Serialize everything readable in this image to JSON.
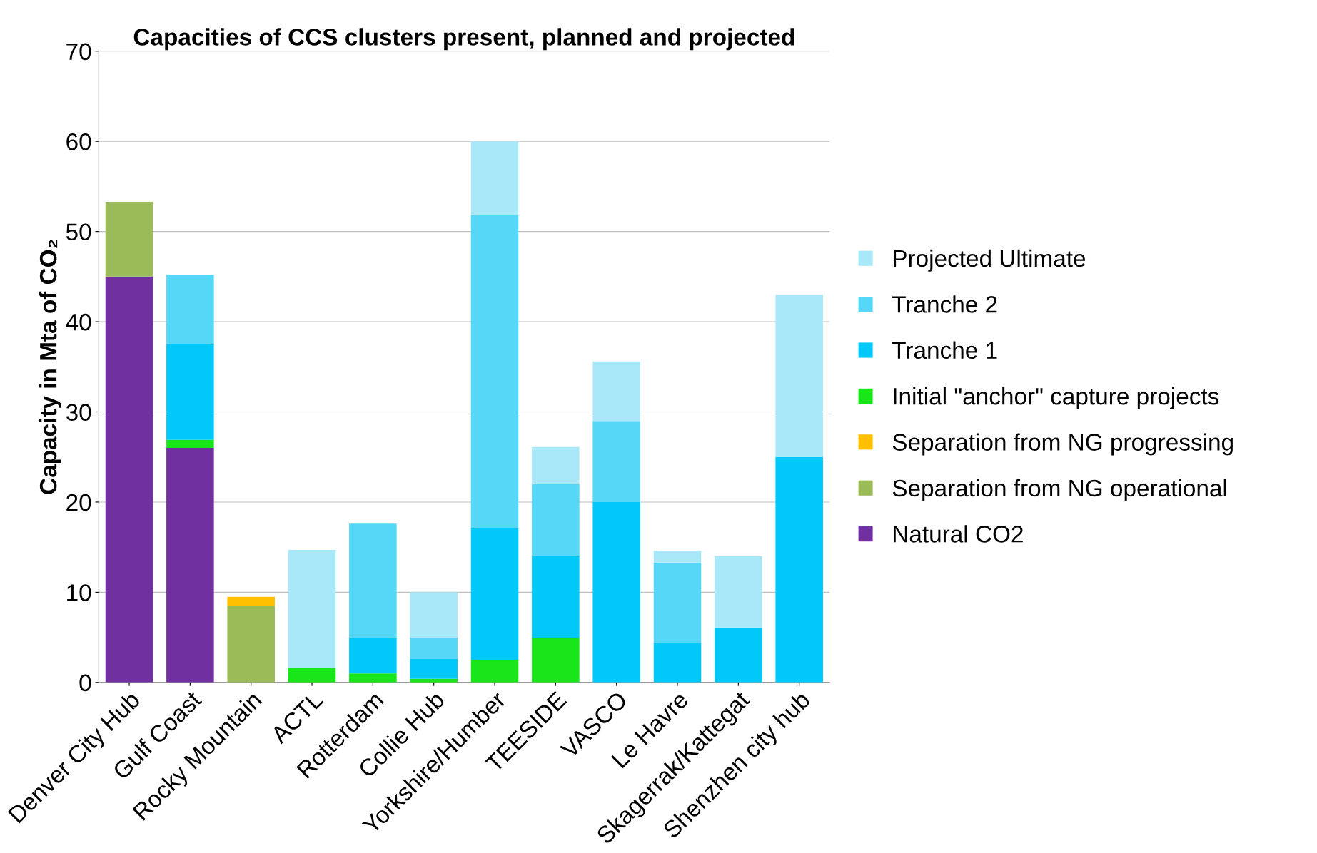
{
  "chart_data": {
    "type": "bar",
    "stacked": true,
    "title": "Capacities of CCS clusters present, planned and projected",
    "ylabel": "Capacity in Mta of CO₂",
    "categories": [
      "Denver City Hub",
      "Gulf Coast",
      "Rocky Mountain",
      "ACTL",
      "Rotterdam",
      "Collie Hub",
      "Yorkshire/Humber",
      "TEESIDE",
      "VASCO",
      "Le Havre",
      "Skagerrak/Kattegat",
      "Shenzhen city hub"
    ],
    "series": [
      {
        "name": "Natural CO2",
        "color": "#7030a0",
        "values": [
          45,
          26,
          null,
          null,
          null,
          null,
          null,
          null,
          null,
          null,
          null,
          null
        ]
      },
      {
        "name": "Separation from NG operational",
        "color": "#9bbb59",
        "values": [
          8.3,
          null,
          8.5,
          null,
          null,
          null,
          null,
          null,
          null,
          null,
          null,
          null
        ]
      },
      {
        "name": "Separation from NG progressing",
        "color": "#ffc000",
        "values": [
          null,
          null,
          1.0,
          null,
          null,
          null,
          null,
          null,
          null,
          null,
          null,
          null
        ]
      },
      {
        "name": "Initial \"anchor\" capture projects",
        "color": "#19e619",
        "values": [
          null,
          0.9,
          null,
          1.6,
          1.0,
          0.4,
          2.5,
          4.9,
          null,
          null,
          null,
          null
        ]
      },
      {
        "name": "Tranche 1",
        "color": "#00c8f8",
        "values": [
          null,
          10.6,
          null,
          null,
          3.9,
          2.2,
          14.6,
          9.1,
          20,
          4.4,
          6.1,
          25
        ]
      },
      {
        "name": "Tranche 2",
        "color": "#55d8f8",
        "values": [
          null,
          7.7,
          null,
          null,
          12.7,
          2.4,
          34.7,
          8.0,
          9,
          8.9,
          null,
          null
        ]
      },
      {
        "name": "Projected Ultimate",
        "color": "#a8e8f8",
        "values": [
          null,
          null,
          null,
          13.1,
          null,
          5.0,
          8.2,
          4.1,
          6.6,
          1.3,
          7.9,
          18
        ]
      }
    ],
    "ylim": [
      0,
      70
    ],
    "yticks": [
      0,
      10,
      20,
      30,
      40,
      50,
      60,
      70
    ],
    "grid": "y",
    "legend": "right"
  }
}
